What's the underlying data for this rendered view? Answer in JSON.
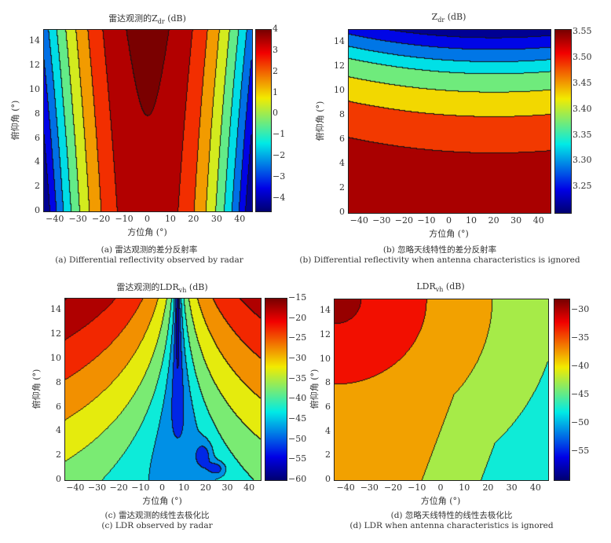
{
  "chart_data": [
    {
      "id": "a",
      "type": "contour",
      "title": {
        "prefix": "雷达观测的Z",
        "sub": "dr",
        "suffix": " (dB)"
      },
      "xlabel": "方位角 (°)",
      "ylabel": "俯仰角 (°)",
      "xlim": [
        -45,
        45
      ],
      "ylim": [
        0,
        15
      ],
      "xticks": [
        -40,
        -30,
        -20,
        -10,
        0,
        10,
        20,
        30,
        40
      ],
      "yticks": [
        0,
        2,
        4,
        6,
        8,
        10,
        12,
        14
      ],
      "colorbar": {
        "range": [
          -4.6,
          4
        ],
        "ticks": [
          4,
          3,
          2,
          1,
          0,
          -1,
          -2,
          -3,
          -4
        ]
      },
      "levels": [
        -4,
        -3,
        -2,
        -1,
        0,
        1,
        2,
        3,
        4
      ],
      "caption_cn": "(a) 雷达观测的差分反射率",
      "caption_en": "(a) Differential reflectivity observed by radar"
    },
    {
      "id": "b",
      "type": "contour",
      "title": {
        "prefix": "Z",
        "sub": "dr",
        "suffix": " (dB)"
      },
      "xlabel": "方位角 (°)",
      "ylabel": "俯仰角 (°)",
      "xlim": [
        -45,
        45
      ],
      "ylim": [
        0,
        15
      ],
      "xticks": [
        -40,
        -30,
        -20,
        -10,
        0,
        10,
        20,
        30,
        40
      ],
      "yticks": [
        0,
        2,
        4,
        6,
        8,
        10,
        12,
        14
      ],
      "colorbar": {
        "range": [
          3.2,
          3.555
        ],
        "ticks": [
          "3.55",
          "3.50",
          "3.45",
          "3.40",
          "3.35",
          "3.30",
          "3.25"
        ]
      },
      "levels": [
        3.225,
        3.268,
        3.31,
        3.348,
        3.4,
        3.458,
        3.52
      ],
      "caption_cn": "(b) 忽略天线特性的差分反射率",
      "caption_en": "(b) Differential reflectivity when antenna characteristics is ignored"
    },
    {
      "id": "c",
      "type": "contour",
      "title": {
        "prefix": "雷达观测的LDR",
        "sub": "vh",
        "suffix": " (dB)"
      },
      "xlabel": "方位角 (°)",
      "ylabel": "俯仰角 (°)",
      "xlim": [
        -45,
        45
      ],
      "ylim": [
        0,
        15
      ],
      "xticks": [
        -40,
        -30,
        -20,
        -10,
        0,
        10,
        20,
        30,
        40
      ],
      "yticks": [
        0,
        2,
        4,
        6,
        8,
        10,
        12,
        14
      ],
      "colorbar": {
        "range": [
          -60,
          -15
        ],
        "ticks": [
          -15,
          -20,
          -25,
          -30,
          -35,
          -40,
          -45,
          -50,
          -55,
          -60
        ]
      },
      "levels": [
        -55,
        -50,
        -45,
        -40,
        -35,
        -30,
        -25,
        -20,
        -15
      ],
      "caption_cn": "(c) 雷达观测的线性去极化比",
      "caption_en": "(c) LDR observed by radar"
    },
    {
      "id": "d",
      "type": "contour",
      "title": {
        "prefix": "LDR",
        "sub": "vh",
        "suffix": " (dB)"
      },
      "xlabel": "方位角 (°)",
      "ylabel": "俯仰角 (°)",
      "xlim": [
        -45,
        45
      ],
      "ylim": [
        0,
        15
      ],
      "xticks": [
        -40,
        -30,
        -20,
        -10,
        0,
        10,
        20,
        30,
        40
      ],
      "yticks": [
        0,
        2,
        4,
        6,
        8,
        10,
        12,
        14
      ],
      "colorbar": {
        "range": [
          -60,
          -28
        ],
        "ticks": [
          -30,
          -35,
          -40,
          -45,
          -50,
          -55
        ]
      },
      "levels": [
        -55,
        -50,
        -45,
        -40,
        -35,
        -30
      ],
      "caption_cn": "(d) 忽略天线特性的线性去极化比",
      "caption_en": "(d) LDR when antenna characteristics is ignored"
    }
  ]
}
